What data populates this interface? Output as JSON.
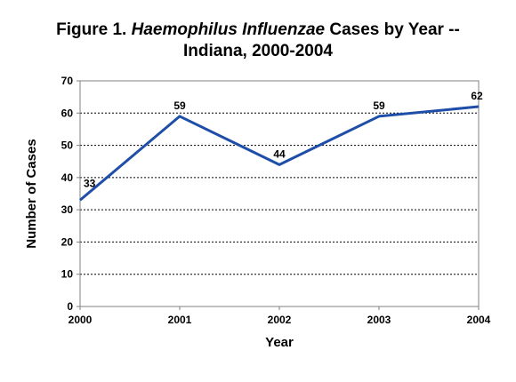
{
  "title": {
    "line1_prefix": "Figure 1.  ",
    "line1_italic": "Haemophilus Influenzae",
    "line1_suffix": " Cases by Year --",
    "line2": "Indiana, 2000-2004"
  },
  "chart_data": {
    "type": "line",
    "title": "Figure 1. Haemophilus Influenzae Cases by Year -- Indiana, 2000-2004",
    "xlabel": "Year",
    "ylabel": "Number of Cases",
    "x": [
      "2000",
      "2001",
      "2002",
      "2003",
      "2004"
    ],
    "series": [
      {
        "values": [
          33,
          59,
          44,
          59,
          62
        ]
      }
    ],
    "data_labels": [
      "33",
      "59",
      "44",
      "59",
      "62"
    ],
    "ylim": [
      0,
      70
    ],
    "yticks": [
      0,
      10,
      20,
      30,
      40,
      50,
      60,
      70
    ],
    "grid": "horizontal dotted",
    "line_color": "#1f4ea8"
  }
}
